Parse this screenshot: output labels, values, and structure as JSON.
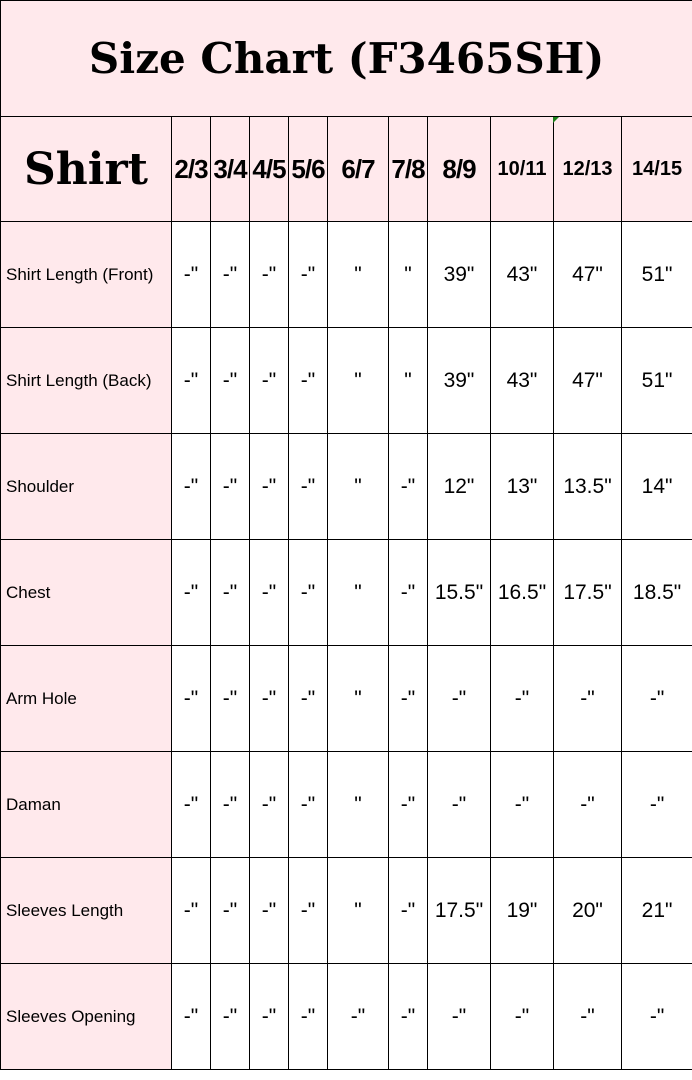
{
  "title": "Size Chart (F3465SH)",
  "header": {
    "label": "Shirt",
    "sizes": [
      "2/3",
      "3/4",
      "4/5",
      "5/6",
      "6/7",
      "7/8",
      "8/9",
      "10/11",
      "12/13",
      "14/15"
    ]
  },
  "accent_color": "#ffe9ec",
  "rows": [
    {
      "label": "Shirt Length (Front)",
      "values": [
        "-\"",
        "-\"",
        "-\"",
        "-\"",
        "\"",
        "\"",
        "39\"",
        "43\"",
        "47\"",
        "51\""
      ]
    },
    {
      "label": "Shirt Length (Back)",
      "values": [
        "-\"",
        "-\"",
        "-\"",
        "-\"",
        "\"",
        "\"",
        "39\"",
        "43\"",
        "47\"",
        "51\""
      ]
    },
    {
      "label": "Shoulder",
      "values": [
        "-\"",
        "-\"",
        "-\"",
        "-\"",
        "\"",
        "-\"",
        "12\"",
        "13\"",
        "13.5\"",
        "14\""
      ]
    },
    {
      "label": "Chest",
      "values": [
        "-\"",
        "-\"",
        "-\"",
        "-\"",
        "\"",
        "-\"",
        "15.5\"",
        "16.5\"",
        "17.5\"",
        "18.5\""
      ]
    },
    {
      "label": "Arm Hole",
      "values": [
        "-\"",
        "-\"",
        "-\"",
        "-\"",
        "\"",
        "-\"",
        "-\"",
        "-\"",
        "-\"",
        "-\""
      ]
    },
    {
      "label": "Daman",
      "values": [
        "-\"",
        "-\"",
        "-\"",
        "-\"",
        "\"",
        "-\"",
        "-\"",
        "-\"",
        "-\"",
        "-\""
      ]
    },
    {
      "label": "Sleeves Length",
      "values": [
        "-\"",
        "-\"",
        "-\"",
        "-\"",
        "\"",
        "-\"",
        "17.5\"",
        "19\"",
        "20\"",
        "21\""
      ]
    },
    {
      "label": "Sleeves Opening",
      "values": [
        "-\"",
        "-\"",
        "-\"",
        "-\"",
        "-\"",
        "-\"",
        "-\"",
        "-\"",
        "-\"",
        "-\""
      ]
    }
  ]
}
